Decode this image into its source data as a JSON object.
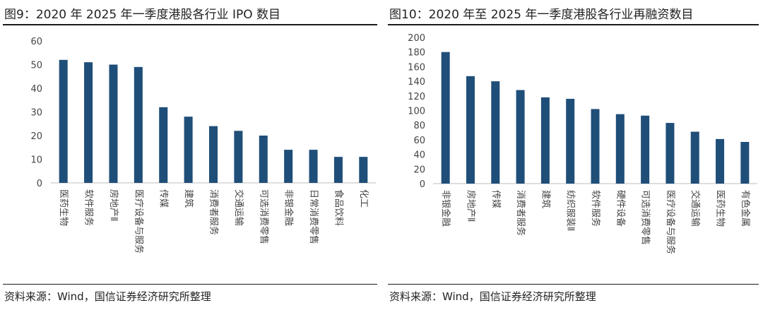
{
  "left": {
    "title": "图9：2020 年 2025 年一季度港股各行业 IPO 数目",
    "source": "资料来源：Wind，国信证券经济研究所整理"
  },
  "right": {
    "title": "图10：2020 年至 2025 年一季度港股各行业再融资数目",
    "source": "资料来源：Wind，国信证券经济研究所整理"
  },
  "chart_data": [
    {
      "type": "bar",
      "title": "图9：2020 年 2025 年一季度港股各行业 IPO 数目",
      "categories": [
        "医药生物",
        "软件服务",
        "房地产Ⅱ",
        "医疗设备与服务",
        "传媒",
        "建筑",
        "消费者服务",
        "交通运输",
        "可选消费零售",
        "非银金融",
        "日常消费零售",
        "食品饮料",
        "化工"
      ],
      "values": [
        52,
        51,
        50,
        49,
        32,
        28,
        24,
        22,
        20,
        14,
        14,
        11,
        11
      ],
      "ylim": [
        0,
        60
      ],
      "yticks": [
        0,
        10,
        20,
        30,
        40,
        50,
        60
      ],
      "xlabel": "",
      "ylabel": "",
      "grid": false,
      "bar_color": "#1F4E79"
    },
    {
      "type": "bar",
      "title": "图10：2020 年至 2025 年一季度港股各行业再融资数目",
      "categories": [
        "非银金融",
        "房地产Ⅱ",
        "传媒",
        "消费者服务",
        "建筑",
        "纺织服装Ⅱ",
        "软件服务",
        "硬件设备",
        "可选消费零售",
        "医疗设备与服务",
        "交通运输",
        "医药生物",
        "有色金属"
      ],
      "values": [
        180,
        147,
        140,
        128,
        118,
        116,
        102,
        95,
        93,
        83,
        71,
        61,
        57
      ],
      "ylim": [
        0,
        200
      ],
      "yticks": [
        0,
        20,
        40,
        60,
        80,
        100,
        120,
        140,
        160,
        180,
        200
      ],
      "xlabel": "",
      "ylabel": "",
      "grid": false,
      "bar_color": "#1F4E79"
    }
  ]
}
